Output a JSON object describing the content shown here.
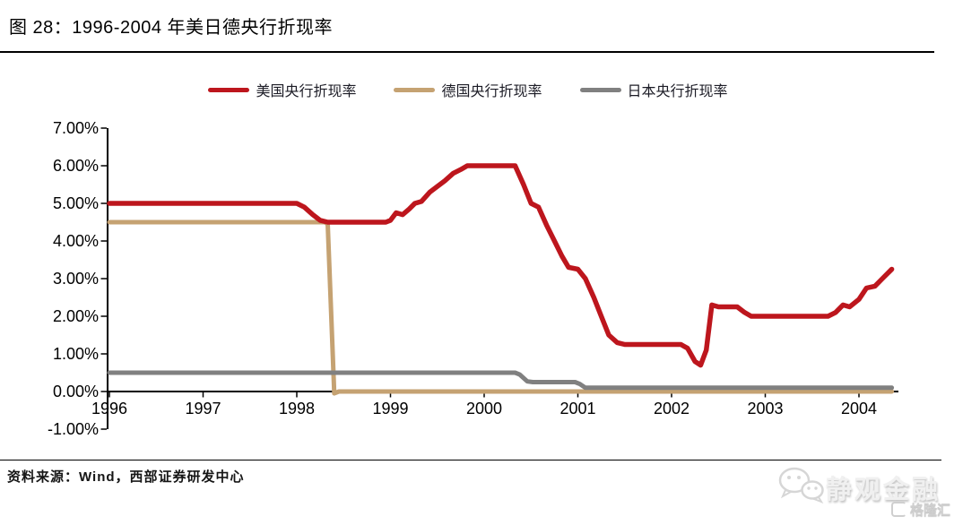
{
  "page": {
    "title": "图 28：1996-2004 年美日德央行折现率"
  },
  "chart_data": {
    "type": "line",
    "title": "1996-2004 年美日德央行折现率",
    "xlabel": "",
    "ylabel": "",
    "y_unit": "%",
    "x_ticks": [
      1996,
      1997,
      1998,
      1999,
      2000,
      2001,
      2002,
      2003,
      2004
    ],
    "y_tick_values": [
      7,
      6,
      5,
      4,
      3,
      2,
      1,
      0,
      -1
    ],
    "y_tick_labels": [
      "7.00%",
      "6.00%",
      "5.00%",
      "4.00%",
      "3.00%",
      "2.00%",
      "1.00%",
      "0.00%",
      "-1.00%"
    ],
    "xlim": [
      1996,
      2004.45
    ],
    "ylim": [
      -1,
      7
    ],
    "grid": false,
    "legend_position": "top",
    "series": [
      {
        "id": "us",
        "name": "美国央行折现率",
        "color": "#bd161d",
        "points": [
          [
            1996.0,
            5.0
          ],
          [
            1998.0,
            5.0
          ],
          [
            1998.08,
            4.9
          ],
          [
            1998.17,
            4.7
          ],
          [
            1998.25,
            4.55
          ],
          [
            1998.33,
            4.5
          ],
          [
            1998.95,
            4.5
          ],
          [
            1999.0,
            4.55
          ],
          [
            1999.06,
            4.75
          ],
          [
            1999.13,
            4.7
          ],
          [
            1999.2,
            4.85
          ],
          [
            1999.26,
            5.0
          ],
          [
            1999.33,
            5.05
          ],
          [
            1999.42,
            5.3
          ],
          [
            1999.5,
            5.45
          ],
          [
            1999.58,
            5.6
          ],
          [
            1999.67,
            5.8
          ],
          [
            1999.75,
            5.9
          ],
          [
            1999.82,
            6.0
          ],
          [
            2000.33,
            6.0
          ],
          [
            2000.42,
            5.5
          ],
          [
            2000.5,
            5.0
          ],
          [
            2000.58,
            4.9
          ],
          [
            2000.67,
            4.4
          ],
          [
            2000.75,
            4.0
          ],
          [
            2000.83,
            3.6
          ],
          [
            2000.9,
            3.3
          ],
          [
            2001.0,
            3.25
          ],
          [
            2001.08,
            3.0
          ],
          [
            2001.17,
            2.5
          ],
          [
            2001.25,
            2.0
          ],
          [
            2001.33,
            1.5
          ],
          [
            2001.42,
            1.3
          ],
          [
            2001.5,
            1.25
          ],
          [
            2002.1,
            1.25
          ],
          [
            2002.17,
            1.15
          ],
          [
            2002.25,
            0.8
          ],
          [
            2002.31,
            0.7
          ],
          [
            2002.37,
            1.1
          ],
          [
            2002.43,
            2.3
          ],
          [
            2002.5,
            2.25
          ],
          [
            2002.7,
            2.25
          ],
          [
            2002.78,
            2.1
          ],
          [
            2002.85,
            2.0
          ],
          [
            2003.67,
            2.0
          ],
          [
            2003.75,
            2.1
          ],
          [
            2003.83,
            2.3
          ],
          [
            2003.9,
            2.25
          ],
          [
            2004.0,
            2.45
          ],
          [
            2004.08,
            2.75
          ],
          [
            2004.17,
            2.8
          ],
          [
            2004.25,
            3.0
          ],
          [
            2004.35,
            3.25
          ]
        ]
      },
      {
        "id": "germany",
        "name": "德国央行折现率",
        "color": "#c5a272",
        "points": [
          [
            1996.0,
            4.5
          ],
          [
            1998.3,
            4.5
          ],
          [
            1998.33,
            4.45
          ],
          [
            1998.4,
            -0.05
          ],
          [
            1998.45,
            0.0
          ],
          [
            2004.35,
            0.0
          ]
        ]
      },
      {
        "id": "japan",
        "name": "日本央行折现率",
        "color": "#808080",
        "points": [
          [
            1996.0,
            0.5
          ],
          [
            2000.33,
            0.5
          ],
          [
            2000.38,
            0.45
          ],
          [
            2000.46,
            0.27
          ],
          [
            2000.52,
            0.25
          ],
          [
            2000.97,
            0.25
          ],
          [
            2001.02,
            0.2
          ],
          [
            2001.08,
            0.1
          ],
          [
            2004.35,
            0.1
          ]
        ]
      }
    ]
  },
  "footer": {
    "source": "资料来源：Wind，西部证券研发中心"
  },
  "watermark": {
    "brand": "静观金融",
    "partner": "格隆汇"
  }
}
